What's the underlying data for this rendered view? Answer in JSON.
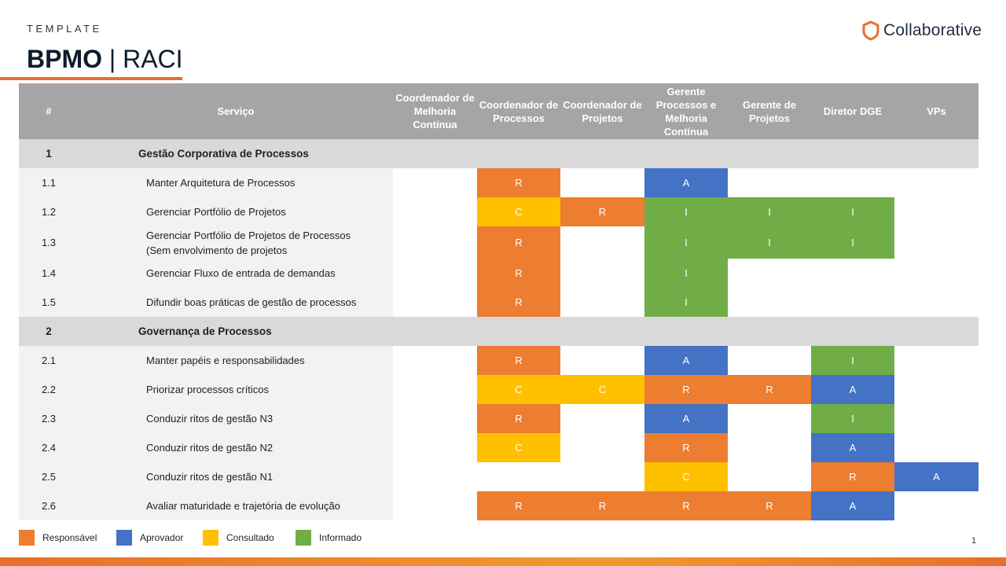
{
  "header": {
    "template_label": "TEMPLATE",
    "title_bold": "BPMO",
    "title_sep": " | ",
    "title_rest": "RACI",
    "logo_text": "Collaborative"
  },
  "colors": {
    "R": "#ed7d31",
    "A": "#4472c4",
    "C": "#ffc000",
    "I": "#70ad47",
    "header_bg": "#a5a5a5",
    "section_bg": "#d9d9d9",
    "row_bg": "#f2f2f2",
    "accent": "#e8702a"
  },
  "table": {
    "columns": {
      "num": "#",
      "service": "Serviço",
      "roles": [
        "Coordenador de Melhoria Contínua",
        "Coordenador de Processos",
        "Coordenador de Projetos",
        "Gerente Processos e Melhoria Contínua",
        "Gerente de Projetos",
        "Diretor DGE",
        "VPs"
      ]
    },
    "sections": [
      {
        "num": "1",
        "title": "Gestão Corporativa de Processos",
        "rows": [
          {
            "num": "1.1",
            "service": "Manter Arquitetura de Processos",
            "cells": [
              "",
              "R",
              "",
              "A",
              "",
              "",
              ""
            ]
          },
          {
            "num": "1.2",
            "service": "Gerenciar Portfólio de Projetos",
            "cells": [
              "",
              "C",
              "R",
              "I",
              "I",
              "I",
              ""
            ]
          },
          {
            "num": "1.3",
            "service": "Gerenciar Portfólio de Projetos de Processos (Sem envolvimento de projetos",
            "cells": [
              "",
              "R",
              "",
              "I",
              "I",
              "I",
              ""
            ]
          },
          {
            "num": "1.4",
            "service": "Gerenciar Fluxo de entrada de demandas",
            "cells": [
              "",
              "R",
              "",
              "I",
              "",
              "",
              ""
            ]
          },
          {
            "num": "1.5",
            "service": "Difundir boas práticas de gestão de processos",
            "cells": [
              "",
              "R",
              "",
              "I",
              "",
              "",
              ""
            ]
          }
        ]
      },
      {
        "num": "2",
        "title": "Governança de Processos",
        "rows": [
          {
            "num": "2.1",
            "service": "Manter papéis e responsabilidades",
            "cells": [
              "",
              "R",
              "",
              "A",
              "",
              "I",
              ""
            ]
          },
          {
            "num": "2.2",
            "service": "Priorizar processos críticos",
            "cells": [
              "",
              "C",
              "C",
              "R",
              "R",
              "A",
              ""
            ]
          },
          {
            "num": "2.3",
            "service": "Conduzir ritos de gestão N3",
            "cells": [
              "",
              "R",
              "",
              "A",
              "",
              "I",
              ""
            ]
          },
          {
            "num": "2.4",
            "service": "Conduzir ritos de gestão N2",
            "cells": [
              "",
              "C",
              "",
              "R",
              "",
              "A",
              ""
            ]
          },
          {
            "num": "2.5",
            "service": "Conduzir ritos de gestão N1",
            "cells": [
              "",
              "",
              "",
              "C",
              "",
              "R",
              "A"
            ]
          },
          {
            "num": "2.6",
            "service": "Avaliar maturidade e trajetória de evolução",
            "cells": [
              "",
              "R",
              "R",
              "R",
              "R",
              "A",
              ""
            ]
          }
        ]
      }
    ]
  },
  "legend": [
    {
      "key": "R",
      "label": "Responsável"
    },
    {
      "key": "A",
      "label": "Aprovador"
    },
    {
      "key": "C",
      "label": "Consultado"
    },
    {
      "key": "I",
      "label": "Informado"
    }
  ],
  "page_number": "1"
}
